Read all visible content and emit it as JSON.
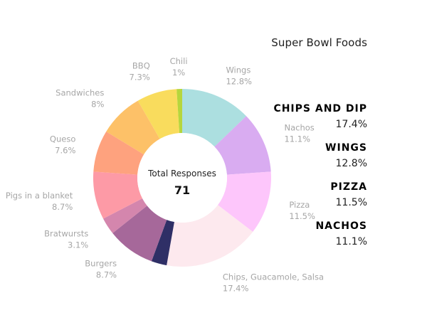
{
  "title": "Super Bowl Foods",
  "center": {
    "label": "Total Responses",
    "value": "71"
  },
  "chart_data": {
    "type": "pie",
    "title": "Super Bowl Foods",
    "slices": [
      {
        "name": "Wings",
        "value": 12.8,
        "label": "12.8%",
        "color": "#acdfe0"
      },
      {
        "name": "Nachos",
        "value": 11.1,
        "label": "11.1%",
        "color": "#d9acf1"
      },
      {
        "name": "Pizza",
        "value": 11.5,
        "label": "11.5%",
        "color": "#fdc6fb"
      },
      {
        "name": "Chips, Guacamole, Salsa",
        "value": 17.4,
        "label": "17.4%",
        "color": "#fde9ee"
      },
      {
        "name": "",
        "value": 2.8,
        "label": "",
        "color": "#2f2f66"
      },
      {
        "name": "Burgers",
        "value": 8.7,
        "label": "8.7%",
        "color": "#a6689a"
      },
      {
        "name": "Bratwursts",
        "value": 3.1,
        "label": "3.1%",
        "color": "#d486ad"
      },
      {
        "name": "Pigs in a blanket",
        "value": 8.7,
        "label": "8.7%",
        "color": "#fd9aa6"
      },
      {
        "name": "Queso",
        "value": 7.6,
        "label": "7.6%",
        "color": "#fea27e"
      },
      {
        "name": "Sandwiches",
        "value": 8.0,
        "label": "8%",
        "color": "#fdc168"
      },
      {
        "name": "BBQ",
        "value": 7.3,
        "label": "7.3%",
        "color": "#f9dc5d"
      },
      {
        "name": "Chili",
        "value": 1.0,
        "label": "1%",
        "color": "#b6d63c"
      }
    ]
  },
  "highlights": [
    {
      "name": "CHIPS AND DIP",
      "value": "17.4%"
    },
    {
      "name": "WINGS",
      "value": "12.8%"
    },
    {
      "name": "PIZZA",
      "value": "11.5%"
    },
    {
      "name": "NACHOS",
      "value": "11.1%"
    }
  ]
}
